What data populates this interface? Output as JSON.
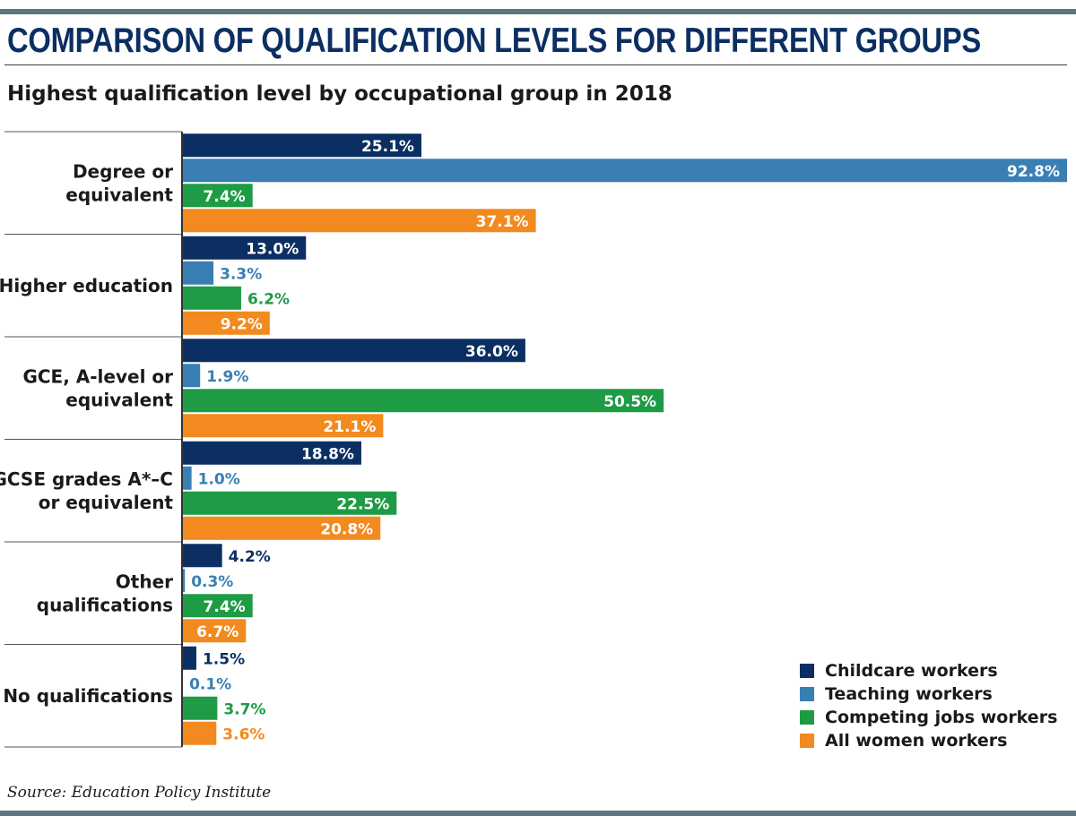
{
  "header": {
    "title": "COMPARISON OF QUALIFICATION LEVELS FOR DIFFERENT GROUPS",
    "subtitle": "Highest qualification level by occupational group in 2018"
  },
  "footer": {
    "source": "Source: Education Policy Institute"
  },
  "colors": {
    "rule": "#5f7582",
    "title": "#0b2f62",
    "childcare": "#0b2f62",
    "teaching": "#3a7fb4",
    "competing": "#1e9b45",
    "all_women": "#f28a1f"
  },
  "chart_data": {
    "type": "bar",
    "orientation": "horizontal",
    "categories": [
      [
        "Degree or",
        "equivalent"
      ],
      [
        "Higher education"
      ],
      [
        "GCE, A-level or",
        "equivalent"
      ],
      [
        "GCSE grades A*–C",
        "or equivalent"
      ],
      [
        "Other",
        "qualifications"
      ],
      [
        "No qualifications"
      ]
    ],
    "series": [
      {
        "name": "Childcare workers",
        "color": "#0b2f62",
        "values": [
          25.1,
          13.0,
          36.0,
          18.8,
          4.2,
          1.5
        ],
        "labels": [
          "25.1%",
          "13.0%",
          "36.0%",
          "18.8%",
          "4.2%",
          "1.5%"
        ]
      },
      {
        "name": "Teaching workers",
        "color": "#3a7fb4",
        "values": [
          92.8,
          3.3,
          1.9,
          1.0,
          0.3,
          0.1
        ],
        "labels": [
          "92.8%",
          "3.3%",
          "1.9%",
          "1.0%",
          "0.3%",
          "0.1%"
        ]
      },
      {
        "name": "Competing jobs workers",
        "color": "#1e9b45",
        "values": [
          7.4,
          6.2,
          50.5,
          22.5,
          7.4,
          3.7
        ],
        "labels": [
          "7.4%",
          "6.2%",
          "50.5%",
          "22.5%",
          "7.4%",
          "3.7%"
        ]
      },
      {
        "name": "All women workers",
        "color": "#f28a1f",
        "values": [
          37.1,
          9.2,
          21.1,
          20.8,
          6.7,
          3.6
        ],
        "labels": [
          "37.1%",
          "9.2%",
          "21.1%",
          "20.8%",
          "6.7%",
          "3.6%"
        ]
      }
    ],
    "xlim": [
      0,
      92.8
    ],
    "grid": false,
    "legend_position": "bottom-right"
  }
}
